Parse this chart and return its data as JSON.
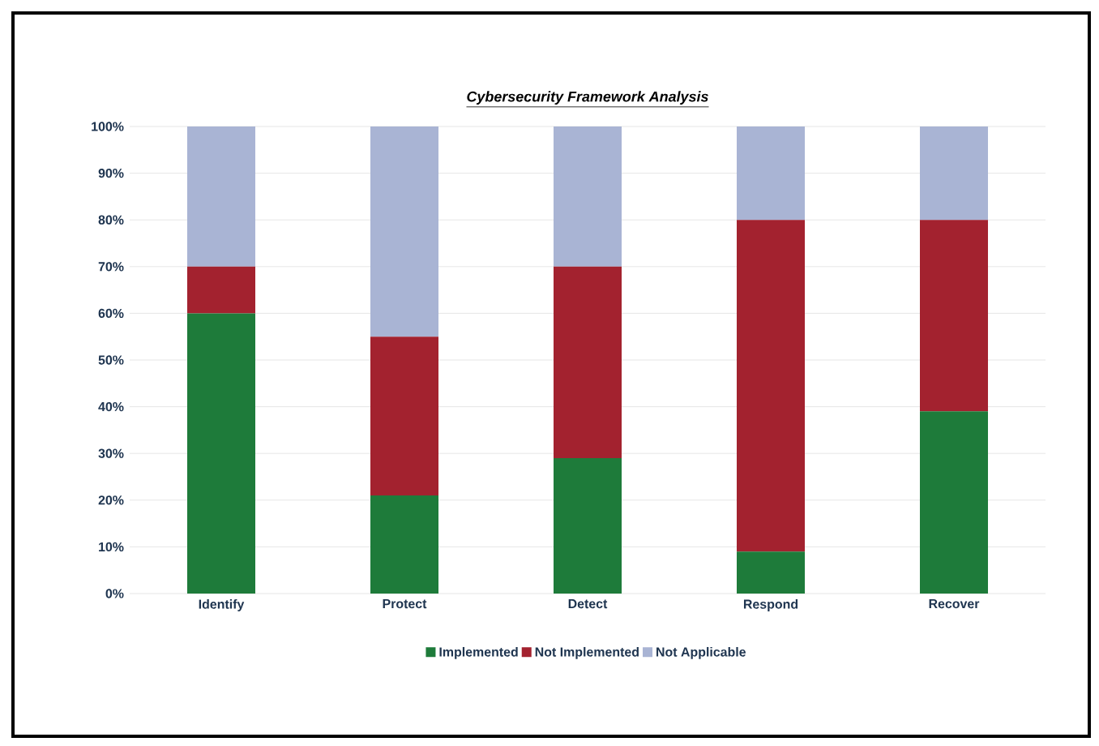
{
  "chart_data": {
    "type": "bar",
    "title": "Cybersecurity Framework Analysis",
    "categories": [
      "Identify",
      "Protect",
      "Detect",
      "Respond",
      "Recover"
    ],
    "series": [
      {
        "name": "Implemented",
        "color": "#1e7b3a",
        "values": [
          60,
          21,
          29,
          9,
          39
        ]
      },
      {
        "name": "Not Implemented",
        "color": "#a3222f",
        "values": [
          10,
          34,
          41,
          71,
          41
        ]
      },
      {
        "name": "Not Applicable",
        "color": "#a9b4d4",
        "values": [
          30,
          45,
          30,
          20,
          20
        ]
      }
    ],
    "stacked": true,
    "ylim": [
      0,
      100
    ],
    "yticks": [
      {
        "value": 0,
        "label": "0%"
      },
      {
        "value": 10,
        "label": "10%"
      },
      {
        "value": 20,
        "label": "20%"
      },
      {
        "value": 30,
        "label": "30%"
      },
      {
        "value": 40,
        "label": "40%"
      },
      {
        "value": 50,
        "label": "50%"
      },
      {
        "value": 60,
        "label": "60%"
      },
      {
        "value": 70,
        "label": "70%"
      },
      {
        "value": 80,
        "label": "80%"
      },
      {
        "value": 90,
        "label": "90%"
      },
      {
        "value": 100,
        "label": "100%"
      }
    ],
    "grid": "y",
    "legend": "bottom"
  }
}
